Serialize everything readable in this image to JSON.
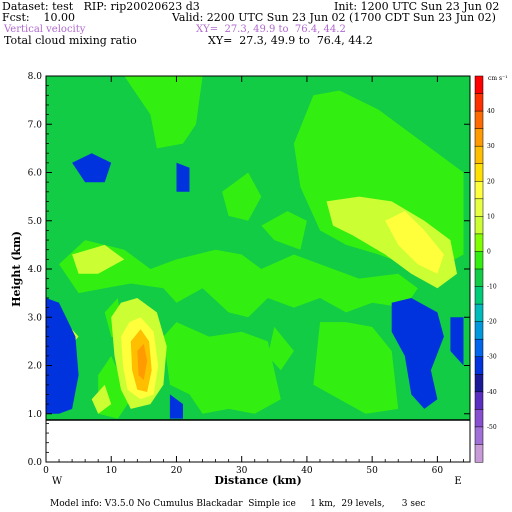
{
  "header": {
    "dataset_line": "Dataset: test   RIP: rip20020623 d3",
    "init_line": "Init: 1200 UTC Sun 23 Jun 02",
    "fcst_line": "Fcst:    10.00",
    "valid_line": "Valid: 2200 UTC Sun 23 Jun 02 (1700 CDT Sun 23 Jun 02)",
    "field1_name": "Vertical velocity",
    "field1_xy": "XY=  27.3, 49.9 to  76.4, 44.2",
    "field2_name": "Total cloud mixing ratio",
    "field2_xy": "XY=  27.3, 49.9 to  76.4, 44.2"
  },
  "footer": {
    "model_info": "Model info: V3.5.0 No Cumulus Blackadar  Simple ice     1 km,  29 levels,      3 sec"
  },
  "chart_data": {
    "type": "heatmap",
    "ylabel": "Height (km)",
    "xlabel": "Distance (km)",
    "x_ticks": [
      0,
      10,
      20,
      30,
      40,
      50,
      60
    ],
    "x_tick_labels": [
      "0",
      "10",
      "20",
      "30",
      "40",
      "50",
      "60"
    ],
    "y_ticks": [
      0,
      1,
      2,
      3,
      4,
      5,
      6,
      7,
      8
    ],
    "y_tick_labels": [
      "0.0",
      "1.0",
      "2.0",
      "3.0",
      "4.0",
      "5.0",
      "6.0",
      "7.0",
      "8.0"
    ],
    "xlim": [
      0,
      65
    ],
    "ylim": [
      0,
      8
    ],
    "direction_left": "W",
    "direction_right": "E",
    "colorbar_unit": "cm s⁻¹",
    "colorbar_labels": [
      "40",
      "30",
      "20",
      "10",
      "0",
      "-10",
      "-20",
      "-30",
      "-40",
      "-50"
    ],
    "colorbar_colors": [
      "#ff0000",
      "#ff3000",
      "#ff6a00",
      "#ff9a00",
      "#ffbe00",
      "#ffe000",
      "#ffff3c",
      "#e6ff40",
      "#ccff33",
      "#80ff00",
      "#33ee11",
      "#11cc44",
      "#00cc77",
      "#00bbbb",
      "#0099dd",
      "#0066ee",
      "#0033dd",
      "#1a1a99",
      "#5a2ec0",
      "#8850d0",
      "#a070d8",
      "#c89ad8"
    ],
    "terrain_top_km": 0.87,
    "field_levels_cm_s": [
      {
        "level": -10,
        "color": "#11cc44",
        "regions": [
          [
            [
              0,
              8
            ],
            [
              65,
              8
            ],
            [
              65,
              0.87
            ],
            [
              0,
              0.87
            ]
          ]
        ]
      },
      {
        "level": -5,
        "color": "#33ee11",
        "regions": [
          [
            [
              12,
              8
            ],
            [
              16,
              7.2
            ],
            [
              17,
              6.5
            ],
            [
              21,
              6.6
            ],
            [
              23,
              7.0
            ],
            [
              24,
              8
            ]
          ],
          [
            [
              27,
              5.6
            ],
            [
              31,
              6.0
            ],
            [
              33,
              5.5
            ],
            [
              31,
              5.0
            ],
            [
              28,
              5.1
            ]
          ],
          [
            [
              33,
              4.9
            ],
            [
              37,
              5.2
            ],
            [
              40,
              5.0
            ],
            [
              39,
              4.4
            ],
            [
              35,
              4.6
            ]
          ],
          [
            [
              2,
              4.1
            ],
            [
              6,
              4.6
            ],
            [
              12,
              4.4
            ],
            [
              16,
              4.0
            ],
            [
              20,
              4.2
            ],
            [
              26,
              4.4
            ],
            [
              30,
              4.3
            ],
            [
              33,
              4.0
            ],
            [
              38,
              4.3
            ],
            [
              44,
              4.0
            ],
            [
              48,
              3.8
            ],
            [
              54,
              3.9
            ],
            [
              57,
              3.6
            ],
            [
              55,
              3.2
            ],
            [
              50,
              3.3
            ],
            [
              46,
              3.1
            ],
            [
              42,
              3.4
            ],
            [
              38,
              3.2
            ],
            [
              34,
              3.4
            ],
            [
              31,
              3.0
            ],
            [
              28,
              3.1
            ],
            [
              24,
              3.6
            ],
            [
              20,
              3.3
            ],
            [
              18,
              3.6
            ],
            [
              13,
              3.7
            ],
            [
              9,
              3.6
            ],
            [
              5,
              3.5
            ]
          ],
          [
            [
              18,
              2.6
            ],
            [
              20,
              2.9
            ],
            [
              25,
              2.6
            ],
            [
              30,
              2.7
            ],
            [
              34,
              2.5
            ],
            [
              36,
              1.3
            ],
            [
              32,
              1.0
            ],
            [
              28,
              1.1
            ],
            [
              24,
              1.0
            ],
            [
              22,
              1.4
            ],
            [
              19,
              1.6
            ]
          ],
          [
            [
              42,
              2.9
            ],
            [
              46,
              2.9
            ],
            [
              50,
              2.8
            ],
            [
              53,
              2.3
            ],
            [
              54,
              1.1
            ],
            [
              49,
              1.0
            ],
            [
              45,
              1.3
            ],
            [
              41,
              1.6
            ]
          ],
          [
            [
              35,
              2.8
            ],
            [
              38,
              2.3
            ],
            [
              36,
              1.9
            ],
            [
              34,
              2.2
            ]
          ],
          [
            [
              41,
              7.6
            ],
            [
              45,
              7.7
            ],
            [
              51,
              7.3
            ],
            [
              56,
              6.8
            ],
            [
              61,
              6.3
            ],
            [
              64,
              6.0
            ],
            [
              64,
              4.3
            ],
            [
              60,
              4.0
            ],
            [
              55,
              4.1
            ],
            [
              51,
              4.3
            ],
            [
              46,
              4.5
            ],
            [
              42,
              4.8
            ],
            [
              39,
              5.7
            ],
            [
              38,
              6.6
            ]
          ],
          [
            [
              8,
              1.8
            ],
            [
              10,
              2.2
            ],
            [
              13,
              1.3
            ],
            [
              11,
              0.9
            ],
            [
              8,
              1.0
            ]
          ],
          [
            [
              9,
              3.1
            ],
            [
              11,
              3.4
            ],
            [
              12,
              2.5
            ],
            [
              10,
              2.6
            ]
          ]
        ]
      },
      {
        "level": 0,
        "color": "#ccff33",
        "regions": [
          [
            [
              10,
              3.0
            ],
            [
              11.5,
              3.3
            ],
            [
              14,
              3.4
            ],
            [
              17,
              3.1
            ],
            [
              18.5,
              2.4
            ],
            [
              18,
              1.6
            ],
            [
              16,
              1.2
            ],
            [
              13,
              1.1
            ],
            [
              11.5,
              1.5
            ],
            [
              10.5,
              2.2
            ]
          ],
          [
            [
              43,
              5.4
            ],
            [
              48,
              5.5
            ],
            [
              53,
              5.4
            ],
            [
              58,
              5.0
            ],
            [
              62,
              4.6
            ],
            [
              63,
              3.9
            ],
            [
              60,
              3.6
            ],
            [
              56,
              3.9
            ],
            [
              52,
              4.3
            ],
            [
              47,
              4.7
            ],
            [
              44,
              4.9
            ]
          ],
          [
            [
              4,
              4.3
            ],
            [
              9,
              4.5
            ],
            [
              12,
              4.2
            ],
            [
              8,
              3.9
            ],
            [
              5,
              3.9
            ]
          ],
          [
            [
              1,
              2.5
            ],
            [
              3,
              2.9
            ],
            [
              5,
              2.6
            ],
            [
              3,
              2.3
            ]
          ],
          [
            [
              7,
              1.3
            ],
            [
              9,
              1.6
            ],
            [
              10,
              1.2
            ],
            [
              8,
              1.0
            ]
          ]
        ]
      },
      {
        "level": 10,
        "color": "#ffff3c",
        "regions": [
          [
            [
              11.5,
              2.6
            ],
            [
              12.8,
              2.9
            ],
            [
              14.5,
              3.0
            ],
            [
              16.5,
              2.7
            ],
            [
              17.2,
              2.0
            ],
            [
              16.5,
              1.4
            ],
            [
              14.5,
              1.3
            ],
            [
              12.5,
              1.5
            ],
            [
              11.8,
              2.0
            ]
          ],
          [
            [
              52,
              5.0
            ],
            [
              55,
              5.2
            ],
            [
              58,
              4.8
            ],
            [
              61,
              4.3
            ],
            [
              60,
              3.9
            ],
            [
              57,
              4.1
            ],
            [
              54,
              4.5
            ]
          ]
        ]
      },
      {
        "level": 20,
        "color": "#ffbe00",
        "regions": [
          [
            [
              13.0,
              2.5
            ],
            [
              14.5,
              2.75
            ],
            [
              15.8,
              2.5
            ],
            [
              16.2,
              1.9
            ],
            [
              15.5,
              1.45
            ],
            [
              14.0,
              1.5
            ],
            [
              13.2,
              1.9
            ]
          ]
        ]
      },
      {
        "level": 30,
        "color": "#ff9a00",
        "regions": [
          [
            [
              14.0,
              2.3
            ],
            [
              15.0,
              2.45
            ],
            [
              15.5,
              2.1
            ],
            [
              15.0,
              1.7
            ],
            [
              14.2,
              1.8
            ]
          ]
        ]
      },
      {
        "level": -20,
        "color": "#0033dd",
        "regions": [
          [
            [
              0,
              3.4
            ],
            [
              2,
              3.3
            ],
            [
              4.5,
              2.6
            ],
            [
              5,
              1.8
            ],
            [
              4,
              1.1
            ],
            [
              2,
              1.0
            ],
            [
              0,
              1.0
            ]
          ],
          [
            [
              4,
              6.2
            ],
            [
              7,
              6.4
            ],
            [
              10,
              6.2
            ],
            [
              9,
              5.8
            ],
            [
              6,
              5.8
            ]
          ],
          [
            [
              20,
              6.2
            ],
            [
              22,
              6.1
            ],
            [
              22,
              5.6
            ],
            [
              20,
              5.6
            ]
          ],
          [
            [
              53,
              3.3
            ],
            [
              56,
              3.4
            ],
            [
              60,
              3.1
            ],
            [
              61,
              2.6
            ],
            [
              59,
              1.9
            ],
            [
              60,
              1.3
            ],
            [
              58,
              1.1
            ],
            [
              56,
              1.4
            ],
            [
              55,
              2.2
            ],
            [
              53,
              2.7
            ]
          ],
          [
            [
              19,
              1.4
            ],
            [
              21,
              1.2
            ],
            [
              21,
              0.9
            ],
            [
              19,
              0.9
            ]
          ],
          [
            [
              62,
              3.0
            ],
            [
              64,
              3.0
            ],
            [
              64,
              2.0
            ],
            [
              62,
              2.3
            ]
          ]
        ]
      }
    ]
  }
}
